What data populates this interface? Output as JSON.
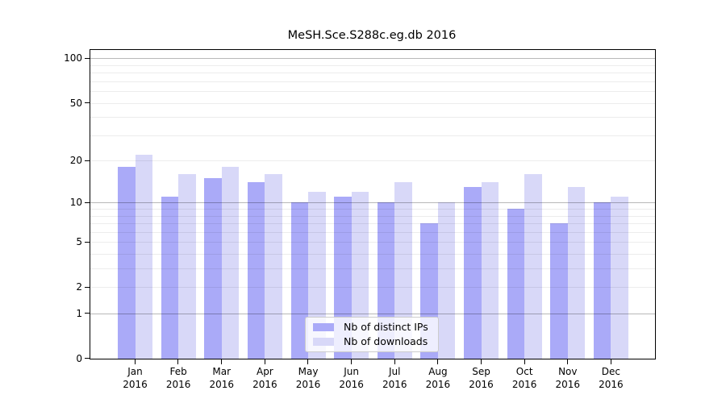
{
  "title": "MeSH.Sce.S288c.eg.db 2016",
  "chart_data": {
    "type": "bar",
    "title": "MeSH.Sce.S288c.eg.db 2016",
    "xlabel": "",
    "ylabel": "",
    "y_scale": "log1p",
    "y_tick_labels": [
      "100",
      "50",
      "20",
      "10",
      "5",
      "2",
      "1",
      "0"
    ],
    "y_tick_values": [
      100,
      50,
      20,
      10,
      5,
      2,
      1,
      0
    ],
    "y_gridlines_major": [
      1,
      10,
      100
    ],
    "y_gridlines_minor": [
      2,
      3,
      4,
      5,
      6,
      7,
      8,
      9,
      20,
      30,
      40,
      50,
      60,
      70,
      80,
      90
    ],
    "ylim_top": 110,
    "categories": [
      "Jan",
      "Feb",
      "Mar",
      "Apr",
      "May",
      "Jun",
      "Jul",
      "Aug",
      "Sep",
      "Oct",
      "Nov",
      "Dec"
    ],
    "x_year_label": "2016",
    "series": [
      {
        "name": "Nb of distinct IPs",
        "color": "#aaaaf8",
        "values": [
          18,
          11,
          15,
          14,
          10,
          11,
          10,
          7,
          13,
          9,
          7,
          10
        ]
      },
      {
        "name": "Nb of downloads",
        "color": "#d8d8f8",
        "values": [
          22,
          16,
          18,
          16,
          12,
          12,
          14,
          10,
          14,
          16,
          13,
          11
        ]
      }
    ],
    "legend_position": "inside-bottom-center",
    "grid": "on"
  },
  "legend": {
    "items": [
      {
        "label": "Nb of distinct IPs",
        "color": "#aaaaf8"
      },
      {
        "label": "Nb of downloads",
        "color": "#d8d8f8"
      }
    ]
  }
}
